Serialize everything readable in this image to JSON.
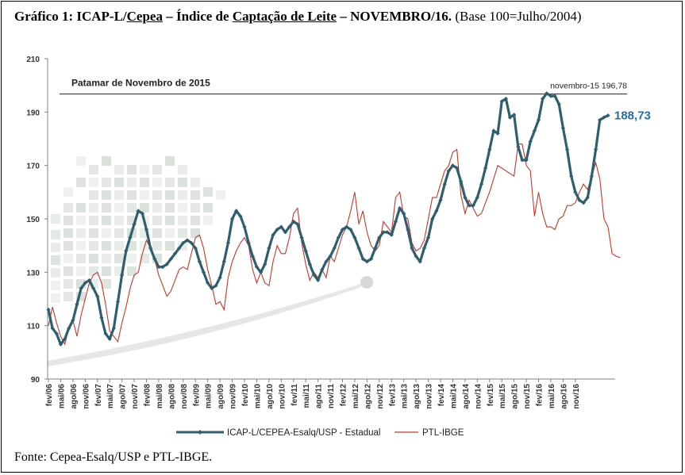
{
  "caption": {
    "title_bold_a": "Gráfico 1: ICAP-L/",
    "title_bold_b": "Cepea",
    "title_bold_c": " – Índice de ",
    "title_bold_d": "Captação de Leite",
    "title_bold_e": " – NOVEMBRO/16.",
    "title_plain": " (Base 100=Julho/2004)"
  },
  "source": "Fonte: Cepea-Esalq/USP e PTL-IBGE.",
  "colors": {
    "icap": "#2f5f6e",
    "ptl": "#c0392b",
    "accent_label": "#1f6fa8"
  },
  "chart_data": {
    "type": "line",
    "ylim": [
      90,
      210
    ],
    "yticks": [
      90,
      110,
      130,
      150,
      170,
      190,
      210
    ],
    "grid": false,
    "legend_position": "bottom",
    "x_tick_labels": [
      "fev/06",
      "mai/06",
      "ago/06",
      "nov/06",
      "fev/07",
      "mai/07",
      "ago/07",
      "nov/07",
      "fev/08",
      "mai/08",
      "ago/08",
      "nov/08",
      "fev/09",
      "mai/09",
      "ago/09",
      "nov/09",
      "fev/10",
      "mai/10",
      "ago/10",
      "nov/10",
      "fev/11",
      "mai/11",
      "ago/11",
      "nov/11",
      "fev/12",
      "mai/12",
      "ago/12",
      "nov/12",
      "fev/13",
      "mai/13",
      "ago/13",
      "nov/13",
      "fev/14",
      "mai/14",
      "ago/14",
      "nov/14",
      "fev/15",
      "mai/15",
      "ago/15",
      "nov/15",
      "fev/16",
      "mai/16",
      "ago/16",
      "nov/16"
    ],
    "reference_line": {
      "label": "Patamar de Novembro de 2015",
      "value": 196.78,
      "value_label": "novembro-15 196,78"
    },
    "last_value_label": "188,73",
    "series": [
      {
        "name": "ICAP-L/CEPEA-Esalq/USP - Estadual",
        "values": [
          116,
          109,
          107,
          103,
          105,
          109,
          112,
          118,
          124,
          126,
          127,
          124,
          121,
          113,
          107,
          105,
          109,
          119,
          129,
          138,
          143,
          148,
          153,
          152,
          146,
          139,
          135,
          132,
          132,
          133,
          135,
          137,
          139,
          141,
          142,
          141,
          139,
          134,
          130,
          126,
          124,
          125,
          128,
          134,
          141,
          150,
          153,
          151,
          147,
          141,
          136,
          132,
          130,
          133,
          139,
          144,
          146,
          147,
          145,
          147,
          149,
          148,
          143,
          138,
          133,
          129,
          127,
          131,
          134,
          136,
          139,
          143,
          146,
          147,
          146,
          143,
          139,
          135,
          134,
          135,
          139,
          143,
          145,
          145,
          144,
          149,
          154,
          152,
          146,
          139,
          136,
          134,
          139,
          143,
          150,
          153,
          157,
          163,
          168,
          170,
          169,
          164,
          158,
          155,
          155,
          158,
          163,
          169,
          176,
          183,
          182,
          194,
          195,
          188,
          189,
          177,
          172,
          172,
          179,
          183,
          187,
          195,
          197,
          196,
          196,
          193,
          184,
          176,
          166,
          160,
          157,
          156,
          158,
          166,
          176,
          187,
          188,
          188.73
        ]
      },
      {
        "name": "PTL-IBGE",
        "values": [
          110,
          117,
          111,
          106,
          103,
          109,
          112,
          106,
          114,
          120,
          126,
          129,
          130,
          126,
          118,
          108,
          106,
          104,
          111,
          117,
          124,
          129,
          130,
          137,
          142,
          139,
          135,
          129,
          125,
          121,
          123,
          127,
          131,
          132,
          131,
          137,
          143,
          144,
          139,
          131,
          125,
          118,
          119,
          116,
          128,
          134,
          138,
          141,
          143,
          140,
          131,
          126,
          130,
          126,
          125,
          134,
          140,
          137,
          137,
          143,
          152,
          154,
          141,
          133,
          127,
          130,
          128,
          131,
          128,
          136,
          134,
          139,
          144,
          147,
          153,
          160,
          148,
          153,
          145,
          140,
          138,
          140,
          149,
          147,
          145,
          158,
          160,
          151,
          150,
          141,
          138,
          139,
          142,
          150,
          158,
          158,
          163,
          168,
          170,
          175,
          176,
          159,
          152,
          157,
          154,
          151,
          152,
          156,
          160,
          165,
          170,
          169,
          168,
          167,
          166,
          178,
          178,
          170,
          168,
          151,
          160,
          152,
          147,
          147,
          146,
          150,
          151,
          155,
          155,
          156,
          160,
          163,
          161,
          166,
          171,
          165,
          150,
          147,
          137,
          136,
          135.5
        ]
      }
    ]
  }
}
